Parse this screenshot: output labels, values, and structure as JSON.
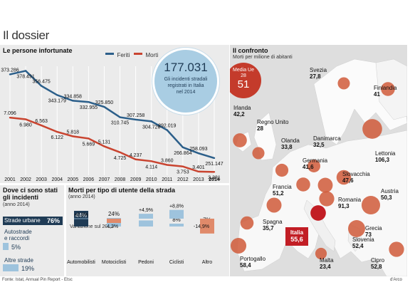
{
  "header": {
    "title": "Il dossier"
  },
  "line_section": {
    "title": "Le persone infortunate",
    "legend": [
      {
        "name": "Feriti",
        "color": "#2c5f8a"
      },
      {
        "name": "Morti",
        "color": "#c94430"
      }
    ],
    "callout": {
      "value": "177.031",
      "text": [
        "Gli incidenti stradali",
        "registrati in Italia",
        "nel 2014"
      ]
    }
  },
  "chart_data": [
    {
      "type": "line",
      "title": "Le persone infortunate",
      "x": [
        "2001",
        "2002",
        "2003",
        "2004",
        "2005",
        "2006",
        "2007",
        "2008",
        "2009",
        "2010",
        "2011",
        "2012",
        "2013",
        "2014"
      ],
      "series": [
        {
          "name": "Feriti",
          "values": [
            373286,
            378491,
            356475,
            343179,
            334858,
            332955,
            325850,
            310745,
            307258,
            304720,
            292019,
            266864,
            258093,
            251147
          ],
          "labels": [
            "373.286",
            "378.491",
            "356.475",
            "343.179",
            "334.858",
            "332.955",
            "325.850",
            "310.745",
            "307.258",
            "304.720",
            "292.019",
            "266.864",
            "258.093",
            "251.147"
          ]
        },
        {
          "name": "Morti",
          "values": [
            7096,
            6980,
            6563,
            6122,
            5818,
            5669,
            5131,
            4725,
            4237,
            4114,
            3860,
            3753,
            3401,
            3381
          ],
          "labels": [
            "7.096",
            "6.980",
            "6.563",
            "6.122",
            "5.818",
            "5.669",
            "5.131",
            "4.725",
            "4.237",
            "4.114",
            "3.860",
            "3.753",
            "3.401",
            "3.381"
          ]
        }
      ]
    },
    {
      "type": "bar",
      "title": "Dove ci sono stati gli incidenti",
      "subtitle": "(anno 2014)",
      "categories": [
        "Strade urbane",
        "Autostrade e raccordi",
        "Altre strade"
      ],
      "values": [
        76,
        5,
        19
      ]
    },
    {
      "type": "bar",
      "title": "Morti per tipo di utente della strada",
      "subtitle": "(anno 2014)",
      "categories": [
        "Automobilisti",
        "Motociclisti",
        "Pedoni",
        "Ciclisti",
        "Altro"
      ],
      "values": [
        44,
        24,
        17,
        8,
        7
      ],
      "variation_label": "Variazione sul 2013",
      "variation": [
        0.3,
        -4.3,
        4.9,
        8.8,
        -14.9
      ]
    },
    {
      "type": "map",
      "title": "Il confronto",
      "subtitle": "Morti per milione di abitanti",
      "average": {
        "label": "Media Ue 28",
        "value": "51"
      },
      "countries": [
        {
          "name": "Svezia",
          "value": "27,8"
        },
        {
          "name": "Finlandia",
          "value": "41"
        },
        {
          "name": "Irlanda",
          "value": "42,2"
        },
        {
          "name": "Regno Unito",
          "value": "28"
        },
        {
          "name": "Olanda",
          "value": "33,8"
        },
        {
          "name": "Danimarca",
          "value": "32,5"
        },
        {
          "name": "Lettonia",
          "value": "106,3"
        },
        {
          "name": "Germania",
          "value": "41,6"
        },
        {
          "name": "Slovacchia",
          "value": "47,6"
        },
        {
          "name": "Francia",
          "value": "51,2"
        },
        {
          "name": "Austria",
          "value": "50,3"
        },
        {
          "name": "Romania",
          "value": "91,3"
        },
        {
          "name": "Spagna",
          "value": "35,7"
        },
        {
          "name": "Italia",
          "value": "55,6"
        },
        {
          "name": "Grecia",
          "value": "73"
        },
        {
          "name": "Slovenia",
          "value": "52,4"
        },
        {
          "name": "Portogallo",
          "value": "58,4"
        },
        {
          "name": "Malta",
          "value": "23,4"
        },
        {
          "name": "Cipro",
          "value": "52,8"
        }
      ]
    }
  ],
  "where": {
    "rows": [
      {
        "label": "Strade urbane",
        "pct": "76%"
      },
      {
        "label": "Autostrade e raccordi",
        "label_lines": [
          "Autostrade",
          "e raccordi"
        ],
        "pct": "5%"
      },
      {
        "label": "Altre strade",
        "pct": "19%"
      }
    ]
  },
  "users": {
    "pcts": [
      "44%",
      "24%",
      "17%",
      "8%",
      "7%"
    ],
    "variations": [
      "+0,3%",
      "-4,3%",
      "+4,9%",
      "+8,8%",
      "-14,9%"
    ]
  },
  "footer": {
    "source": "Fonte: Istat, Annual Pin Report - Etsc",
    "credit": "d'Arco"
  },
  "colors": {
    "dark_navy": "#1f3b55",
    "blue": "#2c5f8a",
    "light_blue": "#9ec3dd",
    "red": "#c94430",
    "salmon": "#e08a6a",
    "circle": "#d05a3a",
    "italy": "#c21e25"
  }
}
